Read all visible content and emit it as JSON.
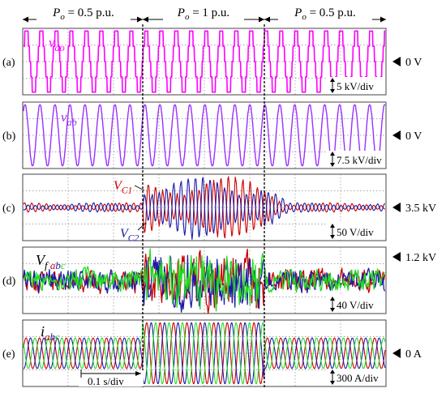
{
  "header": {
    "segments": [
      {
        "label": "P_o = 0.5 p.u.",
        "sym": "P",
        "sub": "o",
        "rest": " = 0.5 p.u."
      },
      {
        "label": "P_o = 1 p.u.",
        "sym": "P",
        "sub": "o",
        "rest": " = 1 p.u."
      },
      {
        "label": "P_o = 0.5 p.u.",
        "sym": "P",
        "sub": "o",
        "rest": " = 0.5 p.u."
      }
    ]
  },
  "time_scale": "0.1 s/div",
  "chart_data": [
    {
      "type": "line",
      "panel": "(a)",
      "signals": [
        {
          "label": "v_ao",
          "sym": "v",
          "sub": "ao",
          "color": "#ff00ff"
        }
      ],
      "reference": "0 V",
      "scale": "5 kV/div",
      "segment_amplitude_div": [
        1.0,
        1.0,
        1.0
      ],
      "waveform": "multilevel staircase sinusoid"
    },
    {
      "type": "line",
      "panel": "(b)",
      "signals": [
        {
          "label": "v_ab",
          "sym": "v",
          "sub": "ab",
          "color": "#9b30ff"
        }
      ],
      "reference": "0 V",
      "scale": "7.5 kV/div",
      "segment_amplitude_div": [
        1.0,
        1.0,
        1.0
      ],
      "waveform": "sinusoid"
    },
    {
      "type": "line",
      "panel": "(c)",
      "signals": [
        {
          "label": "V_C1",
          "sym": "V",
          "sub": "C1",
          "color": "#cc0000"
        },
        {
          "label": "V_C2",
          "sym": "V",
          "sub": "C2",
          "color": "#1a1aa8"
        }
      ],
      "reference": "3.5 kV",
      "scale": "50 V/div",
      "segment_amplitude_div": [
        0.15,
        1.0,
        0.15
      ],
      "waveform": "capacitor voltage ripple"
    },
    {
      "type": "line",
      "panel": "(d)",
      "signals": [
        {
          "label": "V_fabc",
          "sym": "V",
          "sub": "f",
          "phases": [
            "a",
            "b",
            "c"
          ],
          "color": "#000000"
        },
        {
          "label": "a",
          "color": "#cc0000"
        },
        {
          "label": "b",
          "color": "#1a1aa8"
        },
        {
          "label": "c",
          "color": "#22dd22"
        }
      ],
      "reference": "1.2 kV",
      "scale": "40 V/div",
      "segment_amplitude_div": [
        0.4,
        1.0,
        0.4
      ],
      "waveform": "noisy DC-link voltage"
    },
    {
      "type": "line",
      "panel": "(e)",
      "signals": [
        {
          "label": "i_abc",
          "sym": "i",
          "sub": "",
          "phases": [
            "a",
            "b",
            "c"
          ],
          "color": "#000000"
        },
        {
          "label": "a",
          "color": "#cc0000"
        },
        {
          "label": "b",
          "color": "#1a1aa8"
        },
        {
          "label": "c",
          "color": "#22dd22"
        }
      ],
      "reference": "0 A",
      "scale": "300 A/div",
      "segment_amplitude_div": [
        0.5,
        1.0,
        0.5
      ],
      "waveform": "three-phase sinusoidal currents"
    }
  ]
}
